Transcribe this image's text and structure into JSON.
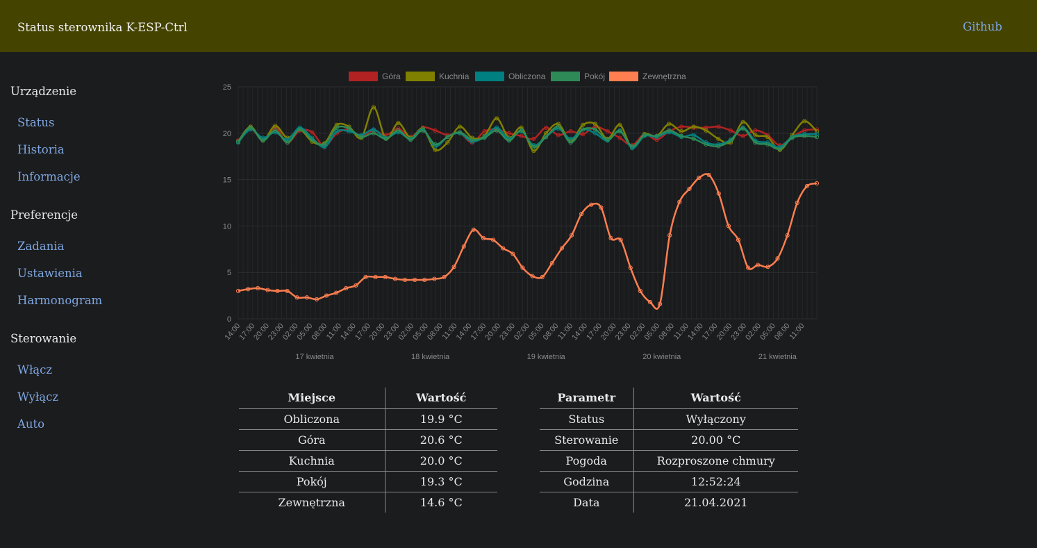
{
  "header": {
    "title": "Status sterownika K-ESP-Ctrl",
    "github_label": "Github"
  },
  "sidebar": {
    "sections": [
      {
        "title": "Urządzenie",
        "items": [
          "Status",
          "Historia",
          "Informacje"
        ]
      },
      {
        "title": "Preferencje",
        "items": [
          "Zadania",
          "Ustawienia",
          "Harmonogram"
        ]
      },
      {
        "title": "Sterowanie",
        "items": [
          "Włącz",
          "Wyłącz",
          "Auto"
        ]
      }
    ]
  },
  "chart_data": {
    "type": "line",
    "ylim": [
      0,
      25
    ],
    "yticks": [
      0,
      5,
      10,
      15,
      20,
      25
    ],
    "grid": true,
    "legend_position": "top",
    "x_tick_labels": [
      "14:00",
      "17:00",
      "20:00",
      "23:00",
      "02:00",
      "05:00",
      "08:00",
      "11:00",
      "14:00",
      "17:00",
      "20:00",
      "23:00",
      "02:00",
      "05:00",
      "08:00",
      "11:00",
      "14:00",
      "17:00",
      "20:00",
      "23:00",
      "02:00",
      "05:00",
      "08:00",
      "11:00",
      "14:00",
      "17:00",
      "20:00",
      "23:00",
      "02:00",
      "05:00",
      "08:00",
      "11:00",
      "14:00",
      "17:00",
      "20:00",
      "23:00",
      "02:00",
      "05:00",
      "08:00",
      "11:00"
    ],
    "day_labels": [
      "17 kwietnia",
      "18 kwietnia",
      "19 kwietnia",
      "20 kwietnia",
      "21 kwietnia"
    ],
    "series": [
      {
        "name": "Góra",
        "color": "#b22222",
        "values": [
          19.2,
          20.5,
          19.3,
          20.6,
          19.0,
          20.3,
          20.1,
          18.6,
          20.0,
          20.4,
          19.7,
          20.3,
          19.8,
          20.5,
          19.6,
          20.6,
          20.3,
          19.8,
          20.0,
          19.0,
          20.2,
          20.4,
          20.0,
          19.7,
          19.4,
          20.6,
          19.8,
          20.2,
          19.9,
          20.7,
          20.2,
          19.5,
          18.7,
          19.9,
          19.3,
          20.2,
          20.7,
          20.6,
          20.6,
          20.7,
          20.3,
          19.7,
          20.3,
          19.8,
          18.7,
          19.6,
          20.3,
          20.4
        ]
      },
      {
        "name": "Kuchnia",
        "color": "#808000",
        "values": [
          19.1,
          20.7,
          19.2,
          20.8,
          19.5,
          20.4,
          19.1,
          18.9,
          20.9,
          20.7,
          19.5,
          22.8,
          19.4,
          21.1,
          19.5,
          20.5,
          18.2,
          19.0,
          20.7,
          19.5,
          19.7,
          21.6,
          19.5,
          20.6,
          18.1,
          20.0,
          21.0,
          19.2,
          20.9,
          21.0,
          19.4,
          20.9,
          18.4,
          19.9,
          19.7,
          21.0,
          20.2,
          20.7,
          20.3,
          19.4,
          19.0,
          21.2,
          19.8,
          19.6,
          18.2,
          19.8,
          21.3,
          20.2
        ]
      },
      {
        "name": "Obliczona",
        "color": "#008080",
        "values": [
          19.0,
          20.4,
          19.5,
          20.1,
          19.3,
          20.6,
          19.5,
          18.5,
          20.2,
          20.2,
          19.8,
          20.4,
          19.5,
          20.1,
          19.4,
          20.4,
          18.6,
          19.6,
          20.0,
          19.1,
          19.6,
          20.6,
          19.4,
          20.2,
          18.7,
          19.6,
          20.5,
          19.4,
          20.4,
          20.0,
          19.2,
          20.3,
          18.4,
          19.7,
          19.6,
          20.1,
          19.6,
          19.8,
          19.0,
          18.8,
          19.3,
          20.6,
          19.2,
          19.0,
          18.5,
          19.6,
          19.9,
          19.9
        ]
      },
      {
        "name": "Pokój",
        "color": "#2e8b57",
        "values": [
          19.1,
          20.6,
          19.2,
          20.3,
          19.0,
          20.4,
          19.3,
          18.8,
          20.6,
          20.5,
          19.6,
          20.0,
          19.4,
          20.3,
          19.3,
          20.3,
          18.8,
          19.6,
          20.1,
          19.3,
          19.5,
          20.3,
          19.2,
          20.3,
          18.5,
          19.6,
          20.7,
          19.0,
          20.4,
          20.4,
          19.3,
          20.2,
          18.6,
          19.8,
          19.7,
          20.3,
          19.7,
          19.4,
          18.8,
          18.6,
          19.2,
          20.5,
          19.0,
          18.8,
          18.3,
          19.5,
          19.7,
          19.6
        ]
      },
      {
        "name": "Zewnętrzna",
        "color": "#ff7f50",
        "values": [
          3.0,
          3.2,
          3.3,
          3.1,
          3.0,
          3.0,
          2.3,
          2.3,
          2.1,
          2.5,
          2.8,
          3.3,
          3.6,
          4.5,
          4.5,
          4.5,
          4.3,
          4.2,
          4.2,
          4.2,
          4.3,
          4.5,
          5.6,
          7.8,
          9.6,
          8.7,
          8.5,
          7.6,
          7.0,
          5.5,
          4.6,
          4.5,
          6.0,
          7.6,
          9.0,
          11.3,
          12.3,
          12.0,
          8.7,
          8.5,
          5.5,
          3.0,
          1.8,
          1.6,
          9.0,
          12.6,
          14.0,
          15.2,
          15.5,
          13.5,
          10.0,
          8.5,
          5.5,
          5.8,
          5.6,
          6.5,
          9.0,
          12.5,
          14.3,
          14.6
        ]
      }
    ]
  },
  "temps_table": {
    "headers": [
      "Miejsce",
      "Wartość"
    ],
    "rows": [
      [
        "Obliczona",
        "19.9 °C"
      ],
      [
        "Góra",
        "20.6 °C"
      ],
      [
        "Kuchnia",
        "20.0 °C"
      ],
      [
        "Pokój",
        "19.3 °C"
      ],
      [
        "Zewnętrzna",
        "14.6 °C"
      ]
    ]
  },
  "params_table": {
    "headers": [
      "Parametr",
      "Wartość"
    ],
    "rows": [
      [
        "Status",
        "Wyłączony"
      ],
      [
        "Sterowanie",
        "20.00 °C"
      ],
      [
        "Pogoda",
        "Rozproszone chmury"
      ],
      [
        "Godzina",
        "12:52:24"
      ],
      [
        "Data",
        "21.04.2021"
      ]
    ]
  }
}
